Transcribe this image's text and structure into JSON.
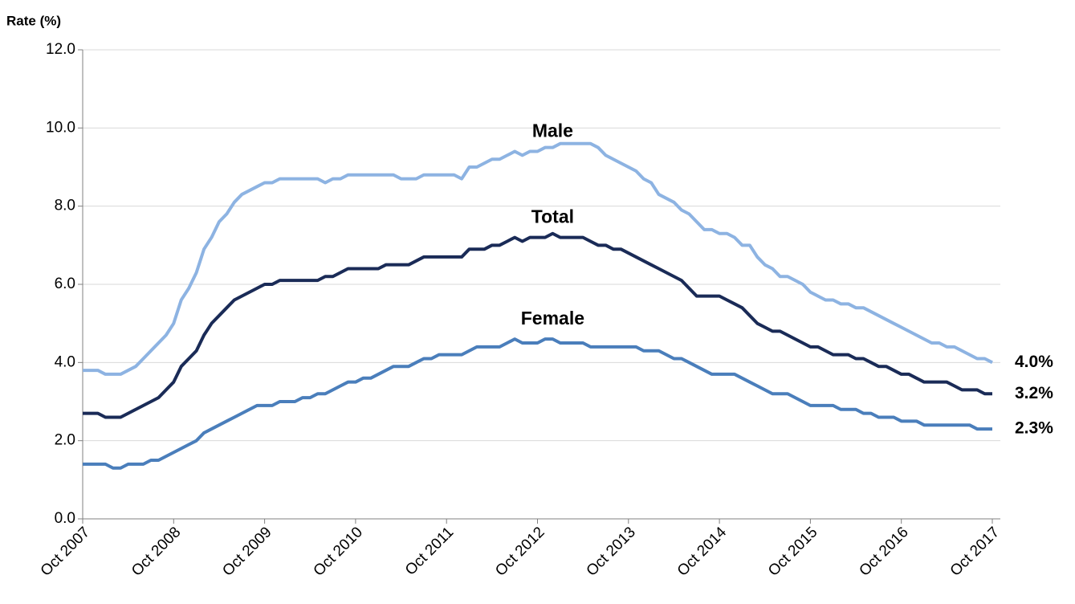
{
  "chart_data": {
    "type": "line",
    "y_label": "Rate (%)",
    "categories": [
      "Oct 2007",
      null,
      null,
      null,
      null,
      null,
      null,
      null,
      null,
      null,
      null,
      null,
      "Oct 2008",
      null,
      null,
      null,
      null,
      null,
      null,
      null,
      null,
      null,
      null,
      null,
      "Oct 2009",
      null,
      null,
      null,
      null,
      null,
      null,
      null,
      null,
      null,
      null,
      null,
      "Oct 2010",
      null,
      null,
      null,
      null,
      null,
      null,
      null,
      null,
      null,
      null,
      null,
      "Oct 2011",
      null,
      null,
      null,
      null,
      null,
      null,
      null,
      null,
      null,
      null,
      null,
      "Oct 2012",
      null,
      null,
      null,
      null,
      null,
      null,
      null,
      null,
      null,
      null,
      null,
      "Oct 2013",
      null,
      null,
      null,
      null,
      null,
      null,
      null,
      null,
      null,
      null,
      null,
      "Oct 2014",
      null,
      null,
      null,
      null,
      null,
      null,
      null,
      null,
      null,
      null,
      null,
      "Oct 2015",
      null,
      null,
      null,
      null,
      null,
      null,
      null,
      null,
      null,
      null,
      null,
      "Oct 2016",
      null,
      null,
      null,
      null,
      null,
      null,
      null,
      null,
      null,
      null,
      null,
      "Oct 2017"
    ],
    "ylim": [
      0,
      12
    ],
    "yticks": [
      {
        "value": 0,
        "label": "0.0"
      },
      {
        "value": 2,
        "label": "2.0"
      },
      {
        "value": 4,
        "label": "4.0"
      },
      {
        "value": 6,
        "label": "6.0"
      },
      {
        "value": 8,
        "label": "8.0"
      },
      {
        "value": 10,
        "label": "10.0"
      },
      {
        "value": 12,
        "label": "12.0"
      }
    ],
    "grid": true,
    "series": [
      {
        "name": "Male",
        "color": "#8db3e2",
        "values": [
          3.8,
          3.8,
          3.8,
          3.7,
          3.7,
          3.7,
          3.8,
          3.9,
          4.1,
          4.3,
          4.5,
          4.7,
          5.0,
          5.6,
          5.9,
          6.3,
          6.9,
          7.2,
          7.6,
          7.8,
          8.1,
          8.3,
          8.4,
          8.5,
          8.6,
          8.6,
          8.7,
          8.7,
          8.7,
          8.7,
          8.7,
          8.7,
          8.6,
          8.7,
          8.7,
          8.8,
          8.8,
          8.8,
          8.8,
          8.8,
          8.8,
          8.8,
          8.7,
          8.7,
          8.7,
          8.8,
          8.8,
          8.8,
          8.8,
          8.8,
          8.7,
          9.0,
          9.0,
          9.1,
          9.2,
          9.2,
          9.3,
          9.4,
          9.3,
          9.4,
          9.4,
          9.5,
          9.5,
          9.6,
          9.6,
          9.6,
          9.6,
          9.6,
          9.5,
          9.3,
          9.2,
          9.1,
          9.0,
          8.9,
          8.7,
          8.6,
          8.3,
          8.2,
          8.1,
          7.9,
          7.8,
          7.6,
          7.4,
          7.4,
          7.3,
          7.3,
          7.2,
          7.0,
          7.0,
          6.7,
          6.5,
          6.4,
          6.2,
          6.2,
          6.1,
          6.0,
          5.8,
          5.7,
          5.6,
          5.6,
          5.5,
          5.5,
          5.4,
          5.4,
          5.3,
          5.2,
          5.1,
          5.0,
          4.9,
          4.8,
          4.7,
          4.6,
          4.5,
          4.5,
          4.4,
          4.4,
          4.3,
          4.2,
          4.1,
          4.1,
          4.0
        ],
        "value_labels": [
          null,
          null,
          null,
          null,
          null,
          null,
          null,
          null,
          null,
          null,
          null,
          null,
          null,
          null,
          null,
          null,
          null,
          null,
          null,
          null,
          null,
          null,
          null,
          null,
          null,
          null,
          null,
          null,
          null,
          null,
          null,
          null,
          null,
          null,
          null,
          null,
          null,
          null,
          null,
          null,
          null,
          null,
          null,
          null,
          null,
          null,
          null,
          null,
          null,
          null,
          null,
          null,
          null,
          null,
          null,
          null,
          null,
          null,
          null,
          null,
          null,
          null,
          null,
          null,
          null,
          null,
          null,
          null,
          null,
          null,
          null,
          null,
          null,
          null,
          null,
          null,
          null,
          null,
          null,
          null,
          null,
          null,
          null,
          null,
          null,
          null,
          null,
          null,
          null,
          null,
          null,
          null,
          null,
          null,
          null,
          null,
          null,
          null,
          null,
          null,
          null,
          null,
          null,
          null,
          null,
          null,
          null,
          null,
          null,
          null,
          null,
          null,
          null,
          null,
          null,
          null,
          null,
          null,
          null,
          null,
          "4.0%"
        ]
      },
      {
        "name": "Total",
        "color": "#1a2b57",
        "values": [
          2.7,
          2.7,
          2.7,
          2.6,
          2.6,
          2.6,
          2.7,
          2.8,
          2.9,
          3.0,
          3.1,
          3.3,
          3.5,
          3.9,
          4.1,
          4.3,
          4.7,
          5.0,
          5.2,
          5.4,
          5.6,
          5.7,
          5.8,
          5.9,
          6.0,
          6.0,
          6.1,
          6.1,
          6.1,
          6.1,
          6.1,
          6.1,
          6.2,
          6.2,
          6.3,
          6.4,
          6.4,
          6.4,
          6.4,
          6.4,
          6.5,
          6.5,
          6.5,
          6.5,
          6.6,
          6.7,
          6.7,
          6.7,
          6.7,
          6.7,
          6.7,
          6.9,
          6.9,
          6.9,
          7.0,
          7.0,
          7.1,
          7.2,
          7.1,
          7.2,
          7.2,
          7.2,
          7.3,
          7.2,
          7.2,
          7.2,
          7.2,
          7.1,
          7.0,
          7.0,
          6.9,
          6.9,
          6.8,
          6.7,
          6.6,
          6.5,
          6.4,
          6.3,
          6.2,
          6.1,
          5.9,
          5.7,
          5.7,
          5.7,
          5.7,
          5.6,
          5.5,
          5.4,
          5.2,
          5.0,
          4.9,
          4.8,
          4.8,
          4.7,
          4.6,
          4.5,
          4.4,
          4.4,
          4.3,
          4.2,
          4.2,
          4.2,
          4.1,
          4.1,
          4.0,
          3.9,
          3.9,
          3.8,
          3.7,
          3.7,
          3.6,
          3.5,
          3.5,
          3.5,
          3.5,
          3.4,
          3.3,
          3.3,
          3.3,
          3.2,
          3.2
        ],
        "value_labels": [
          null,
          null,
          null,
          null,
          null,
          null,
          null,
          null,
          null,
          null,
          null,
          null,
          null,
          null,
          null,
          null,
          null,
          null,
          null,
          null,
          null,
          null,
          null,
          null,
          null,
          null,
          null,
          null,
          null,
          null,
          null,
          null,
          null,
          null,
          null,
          null,
          null,
          null,
          null,
          null,
          null,
          null,
          null,
          null,
          null,
          null,
          null,
          null,
          null,
          null,
          null,
          null,
          null,
          null,
          null,
          null,
          null,
          null,
          null,
          null,
          null,
          null,
          null,
          null,
          null,
          null,
          null,
          null,
          null,
          null,
          null,
          null,
          null,
          null,
          null,
          null,
          null,
          null,
          null,
          null,
          null,
          null,
          null,
          null,
          null,
          null,
          null,
          null,
          null,
          null,
          null,
          null,
          null,
          null,
          null,
          null,
          null,
          null,
          null,
          null,
          null,
          null,
          null,
          null,
          null,
          null,
          null,
          null,
          null,
          null,
          null,
          null,
          null,
          null,
          null,
          null,
          null,
          null,
          null,
          null,
          "3.2%"
        ]
      },
      {
        "name": "Female",
        "color": "#4a7ebb",
        "values": [
          1.4,
          1.4,
          1.4,
          1.4,
          1.3,
          1.3,
          1.4,
          1.4,
          1.4,
          1.5,
          1.5,
          1.6,
          1.7,
          1.8,
          1.9,
          2.0,
          2.2,
          2.3,
          2.4,
          2.5,
          2.6,
          2.7,
          2.8,
          2.9,
          2.9,
          2.9,
          3.0,
          3.0,
          3.0,
          3.1,
          3.1,
          3.2,
          3.2,
          3.3,
          3.4,
          3.5,
          3.5,
          3.6,
          3.6,
          3.7,
          3.8,
          3.9,
          3.9,
          3.9,
          4.0,
          4.1,
          4.1,
          4.2,
          4.2,
          4.2,
          4.2,
          4.3,
          4.4,
          4.4,
          4.4,
          4.4,
          4.5,
          4.6,
          4.5,
          4.5,
          4.5,
          4.6,
          4.6,
          4.5,
          4.5,
          4.5,
          4.5,
          4.4,
          4.4,
          4.4,
          4.4,
          4.4,
          4.4,
          4.4,
          4.3,
          4.3,
          4.3,
          4.2,
          4.1,
          4.1,
          4.0,
          3.9,
          3.8,
          3.7,
          3.7,
          3.7,
          3.7,
          3.6,
          3.5,
          3.4,
          3.3,
          3.2,
          3.2,
          3.2,
          3.1,
          3.0,
          2.9,
          2.9,
          2.9,
          2.9,
          2.8,
          2.8,
          2.8,
          2.7,
          2.7,
          2.6,
          2.6,
          2.6,
          2.5,
          2.5,
          2.5,
          2.4,
          2.4,
          2.4,
          2.4,
          2.4,
          2.4,
          2.4,
          2.3,
          2.3,
          2.3
        ],
        "value_labels": [
          null,
          null,
          null,
          null,
          null,
          null,
          null,
          null,
          null,
          null,
          null,
          null,
          null,
          null,
          null,
          null,
          null,
          null,
          null,
          null,
          null,
          null,
          null,
          null,
          null,
          null,
          null,
          null,
          null,
          null,
          null,
          null,
          null,
          null,
          null,
          null,
          null,
          null,
          null,
          null,
          null,
          null,
          null,
          null,
          null,
          null,
          null,
          null,
          null,
          null,
          null,
          null,
          null,
          null,
          null,
          null,
          null,
          null,
          null,
          null,
          null,
          null,
          null,
          null,
          null,
          null,
          null,
          null,
          null,
          null,
          null,
          null,
          null,
          null,
          null,
          null,
          null,
          null,
          null,
          null,
          null,
          null,
          null,
          null,
          null,
          null,
          null,
          null,
          null,
          null,
          null,
          null,
          null,
          null,
          null,
          null,
          null,
          null,
          null,
          null,
          null,
          null,
          null,
          null,
          null,
          null,
          null,
          null,
          null,
          null,
          null,
          null,
          null,
          null,
          null,
          null,
          null,
          null,
          null,
          null,
          "2.3%"
        ]
      }
    ]
  }
}
